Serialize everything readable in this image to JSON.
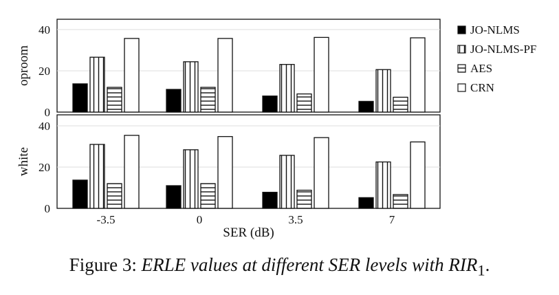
{
  "chart_data": {
    "type": "bar",
    "xlabel": "SER (dB)",
    "categories": [
      "-3.5",
      "0",
      "3.5",
      "7"
    ],
    "legend": [
      "JO-NLMS",
      "JO-NLMS-PF",
      "AES",
      "CRN"
    ],
    "legend_placement": "right",
    "ylim": [
      0,
      40
    ],
    "yticks": [
      "0",
      "20",
      "40"
    ],
    "grid": true,
    "panels": [
      {
        "ylabel": "oproom",
        "series": [
          {
            "name": "JO-NLMS",
            "values": [
              13.7,
              11.0,
              7.8,
              5.2
            ]
          },
          {
            "name": "JO-NLMS-PF",
            "values": [
              26.6,
              24.4,
              23.1,
              20.6
            ]
          },
          {
            "name": "AES",
            "values": [
              12.0,
              12.0,
              8.8,
              7.2
            ]
          },
          {
            "name": "CRN",
            "values": [
              35.7,
              35.7,
              36.2,
              36.0
            ]
          }
        ]
      },
      {
        "ylabel": "white",
        "series": [
          {
            "name": "JO-NLMS",
            "values": [
              13.7,
              11.0,
              7.8,
              5.2
            ]
          },
          {
            "name": "JO-NLMS-PF",
            "values": [
              31.0,
              28.4,
              25.7,
              22.5
            ]
          },
          {
            "name": "AES",
            "values": [
              12.0,
              12.0,
              8.8,
              6.7
            ]
          },
          {
            "name": "CRN",
            "values": [
              35.4,
              34.8,
              34.3,
              32.2
            ]
          }
        ]
      }
    ]
  },
  "caption": {
    "prefix": "Figure 3: ",
    "text": "ERLE values at different SER levels with RIR",
    "subscript": "1",
    "suffix": "."
  }
}
